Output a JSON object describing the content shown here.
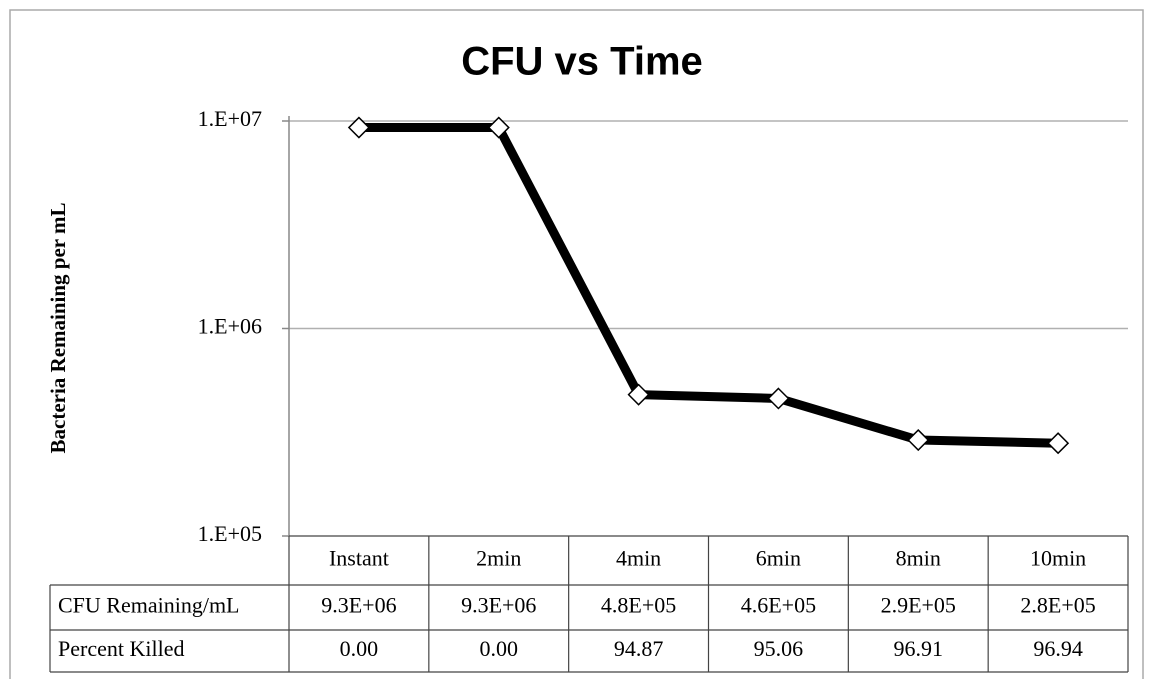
{
  "chart_data": {
    "type": "line",
    "title": "CFU vs Time",
    "y_label": "Bacteria Remaining per mL",
    "categories": [
      "Instant",
      "2min",
      "4min",
      "6min",
      "8min",
      "10min"
    ],
    "series": [
      {
        "name": "CFU Remaining/mL",
        "color": "#000000",
        "values": [
          9300000,
          9300000,
          480000,
          460000,
          290000,
          280000
        ],
        "value_labels": [
          "9.3E+06",
          "9.3E+06",
          "4.8E+05",
          "4.6E+05",
          "2.9E+05",
          "2.8E+05"
        ]
      }
    ],
    "data_table": [
      {
        "name": "Percent Killed",
        "values": [
          "0.00",
          "0.00",
          "94.87",
          "95.06",
          "96.91",
          "96.94"
        ]
      }
    ],
    "log_y": true,
    "ylim": [
      100000,
      10000000
    ],
    "yticks": [
      {
        "value": 100000,
        "label": "1.E+05"
      },
      {
        "value": 1000000,
        "label": "1.E+06"
      },
      {
        "value": 10000000,
        "label": "1.E+07"
      }
    ],
    "grid": true
  }
}
